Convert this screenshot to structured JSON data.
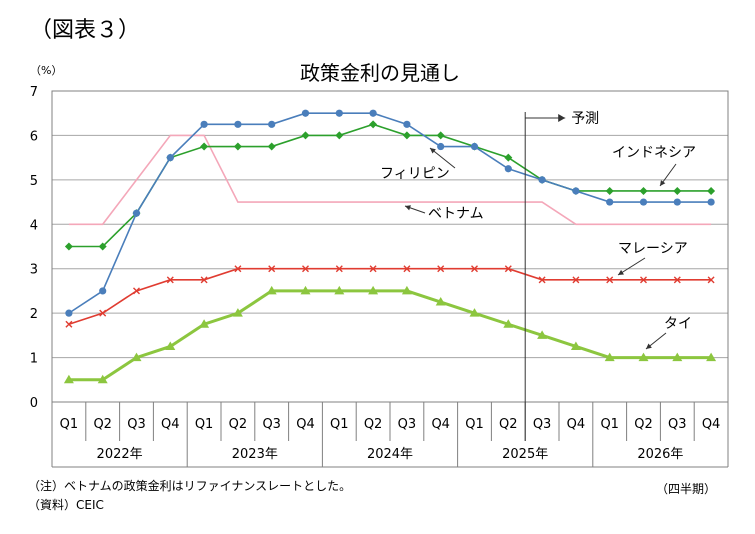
{
  "figure_label": "（図表３）",
  "notes": {
    "note": "（注）ベトナムの政策金利はリファイナンスレートとした。",
    "source": "（資料）CEIC",
    "period": "（四半期）"
  },
  "chart_data": {
    "type": "line",
    "title": "政策金利の見通し",
    "ylabel": "（%）",
    "ylim": [
      0,
      7
    ],
    "yticks": [
      0,
      1,
      2,
      3,
      4,
      5,
      6,
      7
    ],
    "grid": true,
    "x": [
      "Q1",
      "Q2",
      "Q3",
      "Q4",
      "Q1",
      "Q2",
      "Q3",
      "Q4",
      "Q1",
      "Q2",
      "Q3",
      "Q4",
      "Q1",
      "Q2",
      "Q3",
      "Q4",
      "Q1",
      "Q2",
      "Q3",
      "Q4"
    ],
    "year_groups": [
      {
        "label": "2022年",
        "span": 4
      },
      {
        "label": "2023年",
        "span": 4
      },
      {
        "label": "2024年",
        "span": 4
      },
      {
        "label": "2025年",
        "span": 4
      },
      {
        "label": "2026年",
        "span": 4
      }
    ],
    "forecast_label": "予測",
    "forecast_after_index": 13,
    "series": [
      {
        "name": "ベトナム",
        "color": "#f4a7b9",
        "marker": "none",
        "values": [
          4,
          4,
          5,
          6,
          6,
          4.5,
          4.5,
          4.5,
          4.5,
          4.5,
          4.5,
          4.5,
          4.5,
          4.5,
          4.5,
          4,
          4,
          4,
          4,
          4
        ]
      },
      {
        "name": "インドネシア",
        "color": "#2ca02c",
        "marker": "diamond",
        "values": [
          3.5,
          3.5,
          4.25,
          5.5,
          5.75,
          5.75,
          5.75,
          6,
          6,
          6.25,
          6,
          6,
          5.75,
          5.5,
          5,
          4.75,
          4.75,
          4.75,
          4.75,
          4.75
        ]
      },
      {
        "name": "フィリピン",
        "color": "#4a7ebb",
        "marker": "circle",
        "values": [
          2,
          2.5,
          4.25,
          5.5,
          6.25,
          6.25,
          6.25,
          6.5,
          6.5,
          6.5,
          6.25,
          5.75,
          5.75,
          5.25,
          5,
          4.75,
          4.5,
          4.5,
          4.5,
          4.5
        ]
      },
      {
        "name": "マレーシア",
        "color": "#e03c31",
        "marker": "x",
        "values": [
          1.75,
          2,
          2.5,
          2.75,
          2.75,
          3,
          3,
          3,
          3,
          3,
          3,
          3,
          3,
          3,
          2.75,
          2.75,
          2.75,
          2.75,
          2.75,
          2.75
        ]
      },
      {
        "name": "タイ",
        "color": "#8cc63f",
        "marker": "triangle",
        "values": [
          0.5,
          0.5,
          1,
          1.25,
          1.75,
          2,
          2.5,
          2.5,
          2.5,
          2.5,
          2.5,
          2.25,
          2,
          1.75,
          1.5,
          1.25,
          1,
          1,
          1,
          1
        ]
      }
    ],
    "callouts": [
      {
        "series": "フィリピン",
        "text": "フィリピン"
      },
      {
        "series": "ベトナム",
        "text": "ベトナム"
      },
      {
        "series": "インドネシア",
        "text": "インドネシア"
      },
      {
        "series": "マレーシア",
        "text": "マレーシア"
      },
      {
        "series": "タイ",
        "text": "タイ"
      }
    ]
  }
}
